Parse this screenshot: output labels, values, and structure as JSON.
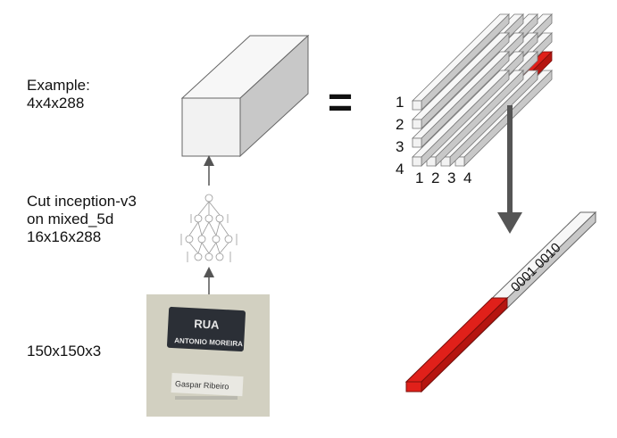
{
  "labels": {
    "example": "Example:\n4x4x288",
    "cut": "Cut inception-v3\non mixed_5d\n16x16x288",
    "input": "150x150x3"
  },
  "equals": "=",
  "grid_rows": [
    "1",
    "2",
    "3",
    "4"
  ],
  "grid_cols": [
    "1",
    "2",
    "3",
    "4"
  ],
  "vector_bits": "0001 0010",
  "sign_text": {
    "top": "RUA",
    "middle": "ANTONIO MOREIRA",
    "bottom": "Gaspar Ribeiro"
  },
  "colors": {
    "highlight": "#e0201a",
    "block_front": "#f2f2f2",
    "block_top": "#f7f7f7",
    "block_side": "#c8c8c8",
    "arrow": "#555555"
  }
}
